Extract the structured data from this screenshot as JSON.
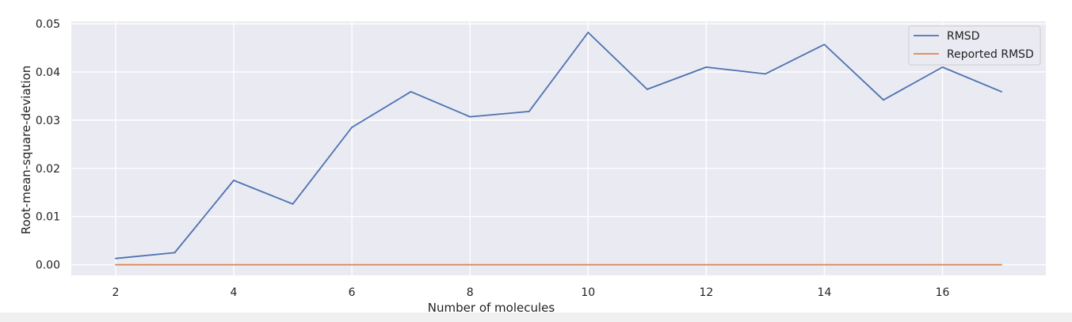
{
  "chart_data": {
    "type": "line",
    "title": "",
    "xlabel": "Number of molecules",
    "ylabel": "Root-mean-square-deviation",
    "xlim": [
      1.25,
      17.75
    ],
    "ylim": [
      -0.0022,
      0.0505
    ],
    "xticks": [
      2,
      4,
      6,
      8,
      10,
      12,
      14,
      16
    ],
    "yticks": [
      0.0,
      0.01,
      0.02,
      0.03,
      0.04,
      0.05
    ],
    "ytick_labels": [
      "0.00",
      "0.01",
      "0.02",
      "0.03",
      "0.04",
      "0.05"
    ],
    "grid": true,
    "legend_position": "top-right",
    "colors": {
      "background": "#eaeaf2",
      "grid": "#ffffff"
    },
    "x": [
      2,
      3,
      4,
      5,
      6,
      7,
      8,
      9,
      10,
      11,
      12,
      13,
      14,
      15,
      16,
      17
    ],
    "series": [
      {
        "name": "RMSD",
        "color": "#4c72b0",
        "values": [
          0.0013,
          0.0025,
          0.0175,
          0.0126,
          0.0285,
          0.0359,
          0.0307,
          0.0318,
          0.0482,
          0.0364,
          0.041,
          0.0396,
          0.0457,
          0.0342,
          0.041,
          0.0359
        ]
      },
      {
        "name": "Reported RMSD",
        "color": "#dd8452",
        "values": [
          0,
          0,
          0,
          0,
          0,
          0,
          0,
          0,
          0,
          0,
          0,
          0,
          0,
          0,
          0,
          0
        ]
      }
    ]
  }
}
